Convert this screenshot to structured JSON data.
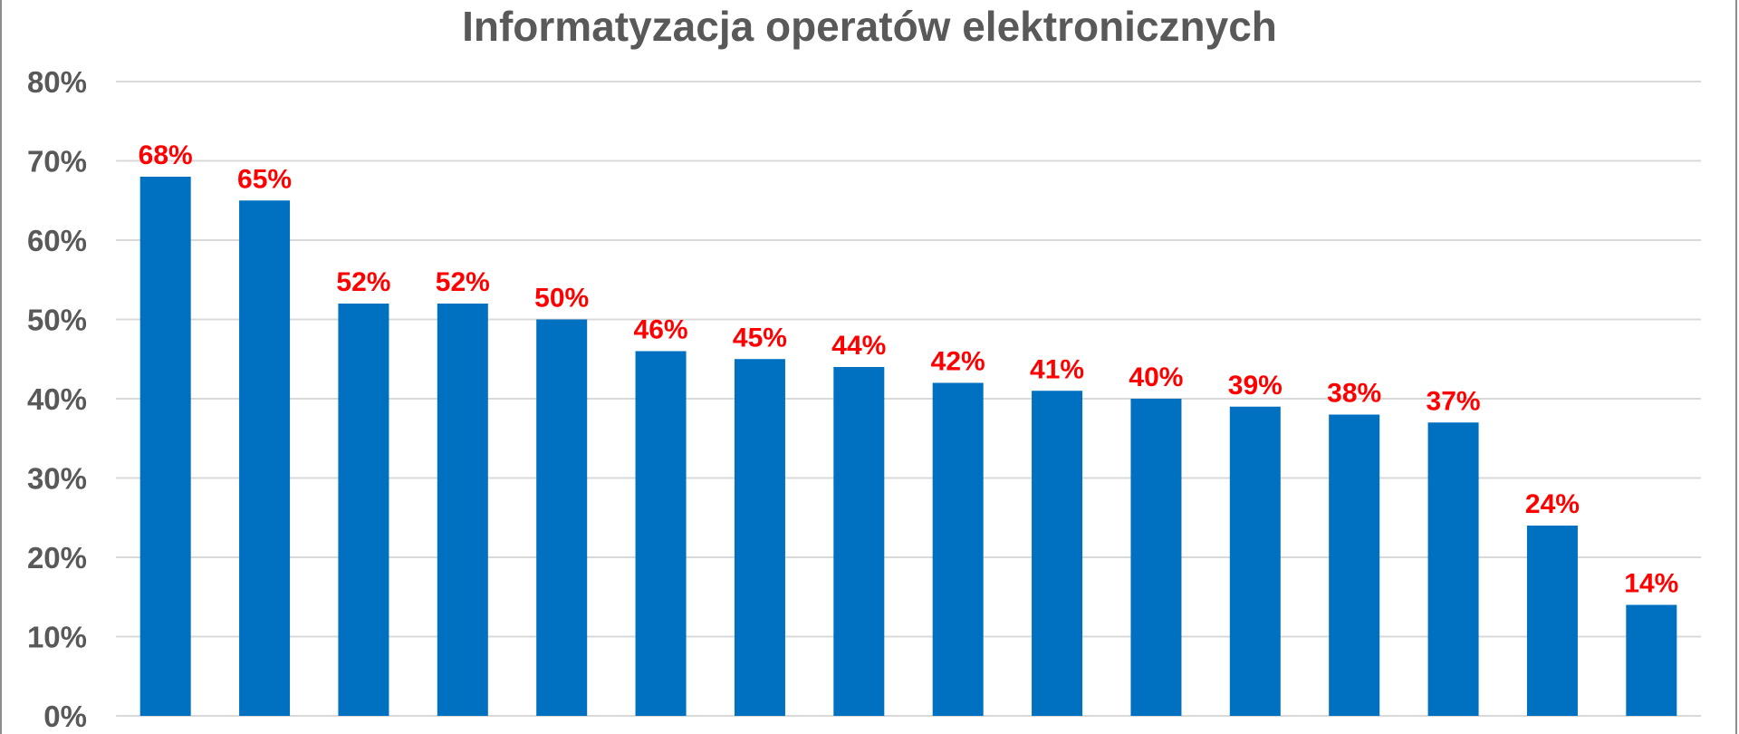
{
  "chart_data": {
    "type": "bar",
    "title": "Informatyzacja operatów elektronicznych",
    "xlabel": "",
    "ylabel": "",
    "categories": [
      "",
      "",
      "",
      "",
      "",
      "",
      "",
      "",
      "",
      "",
      "",
      "",
      "",
      "",
      "",
      ""
    ],
    "values": [
      68,
      65,
      52,
      52,
      50,
      46,
      45,
      44,
      42,
      41,
      40,
      39,
      38,
      37,
      24,
      14
    ],
    "value_labels": [
      "68%",
      "65%",
      "52%",
      "52%",
      "50%",
      "46%",
      "45%",
      "44%",
      "42%",
      "41%",
      "40%",
      "39%",
      "38%",
      "37%",
      "24%",
      "14%"
    ],
    "ylim": [
      0,
      80
    ],
    "yticks": [
      0,
      10,
      20,
      30,
      40,
      50,
      60,
      70,
      80
    ],
    "ytick_labels": [
      "0%",
      "10%",
      "20%",
      "30%",
      "40%",
      "50%",
      "60%",
      "70%",
      "80%"
    ],
    "grid": true,
    "legend": "none",
    "colors": {
      "bar": "#0070C0",
      "data_label": "#FF0000",
      "gridline": "#D9D9D9",
      "text": "#595959"
    }
  }
}
